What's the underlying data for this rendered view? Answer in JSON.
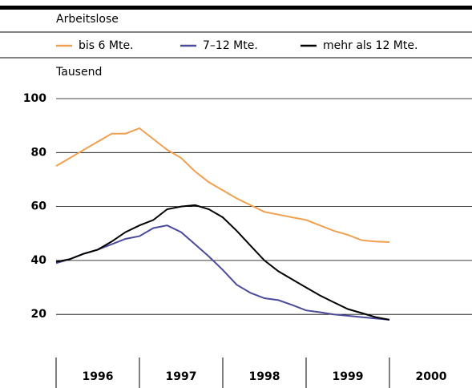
{
  "chart_data": {
    "type": "line",
    "subtitle": "Arbeitslose",
    "ylabel": "Tausend",
    "x": [
      1996,
      1996.167,
      1996.333,
      1996.5,
      1996.667,
      1996.833,
      1997,
      1997.167,
      1997.333,
      1997.5,
      1997.667,
      1997.833,
      1998,
      1998.167,
      1998.333,
      1998.5,
      1998.667,
      1998.833,
      1999,
      1999.167,
      1999.333,
      1999.5,
      1999.667,
      1999.833,
      2000
    ],
    "series": [
      {
        "name": "bis 6 Mte.",
        "color": "#f0a050",
        "values": [
          75,
          78,
          81,
          84,
          87,
          87,
          89,
          85,
          81,
          78,
          73,
          69,
          66,
          63,
          60.5,
          58,
          57,
          56,
          55,
          53,
          51,
          49.5,
          47.5,
          47,
          46.8
        ]
      },
      {
        "name": "7–12 Mte.",
        "color": "#4b4a9c",
        "values": [
          39,
          40.5,
          42.5,
          44,
          46,
          48,
          49,
          52,
          53,
          50.5,
          46,
          41.5,
          36.5,
          31,
          28,
          26,
          25.3,
          23.5,
          21.5,
          20.8,
          20,
          19.5,
          19,
          18.5,
          18
        ]
      },
      {
        "name": "mehr als 12 Mte.",
        "color": "#000000",
        "values": [
          39.5,
          40.5,
          42.5,
          44,
          47,
          50.5,
          53,
          55,
          59,
          60,
          60.5,
          59,
          56,
          51,
          45.5,
          40,
          36,
          33,
          30,
          27,
          24.5,
          22,
          20.5,
          19,
          18
        ]
      }
    ],
    "xlim": [
      1996,
      2001
    ],
    "xticks": [
      1996,
      1997,
      1998,
      1999,
      2000
    ],
    "ylim": [
      0,
      100
    ],
    "yticks": [
      20,
      40,
      60,
      80,
      100
    ],
    "grid": true
  }
}
